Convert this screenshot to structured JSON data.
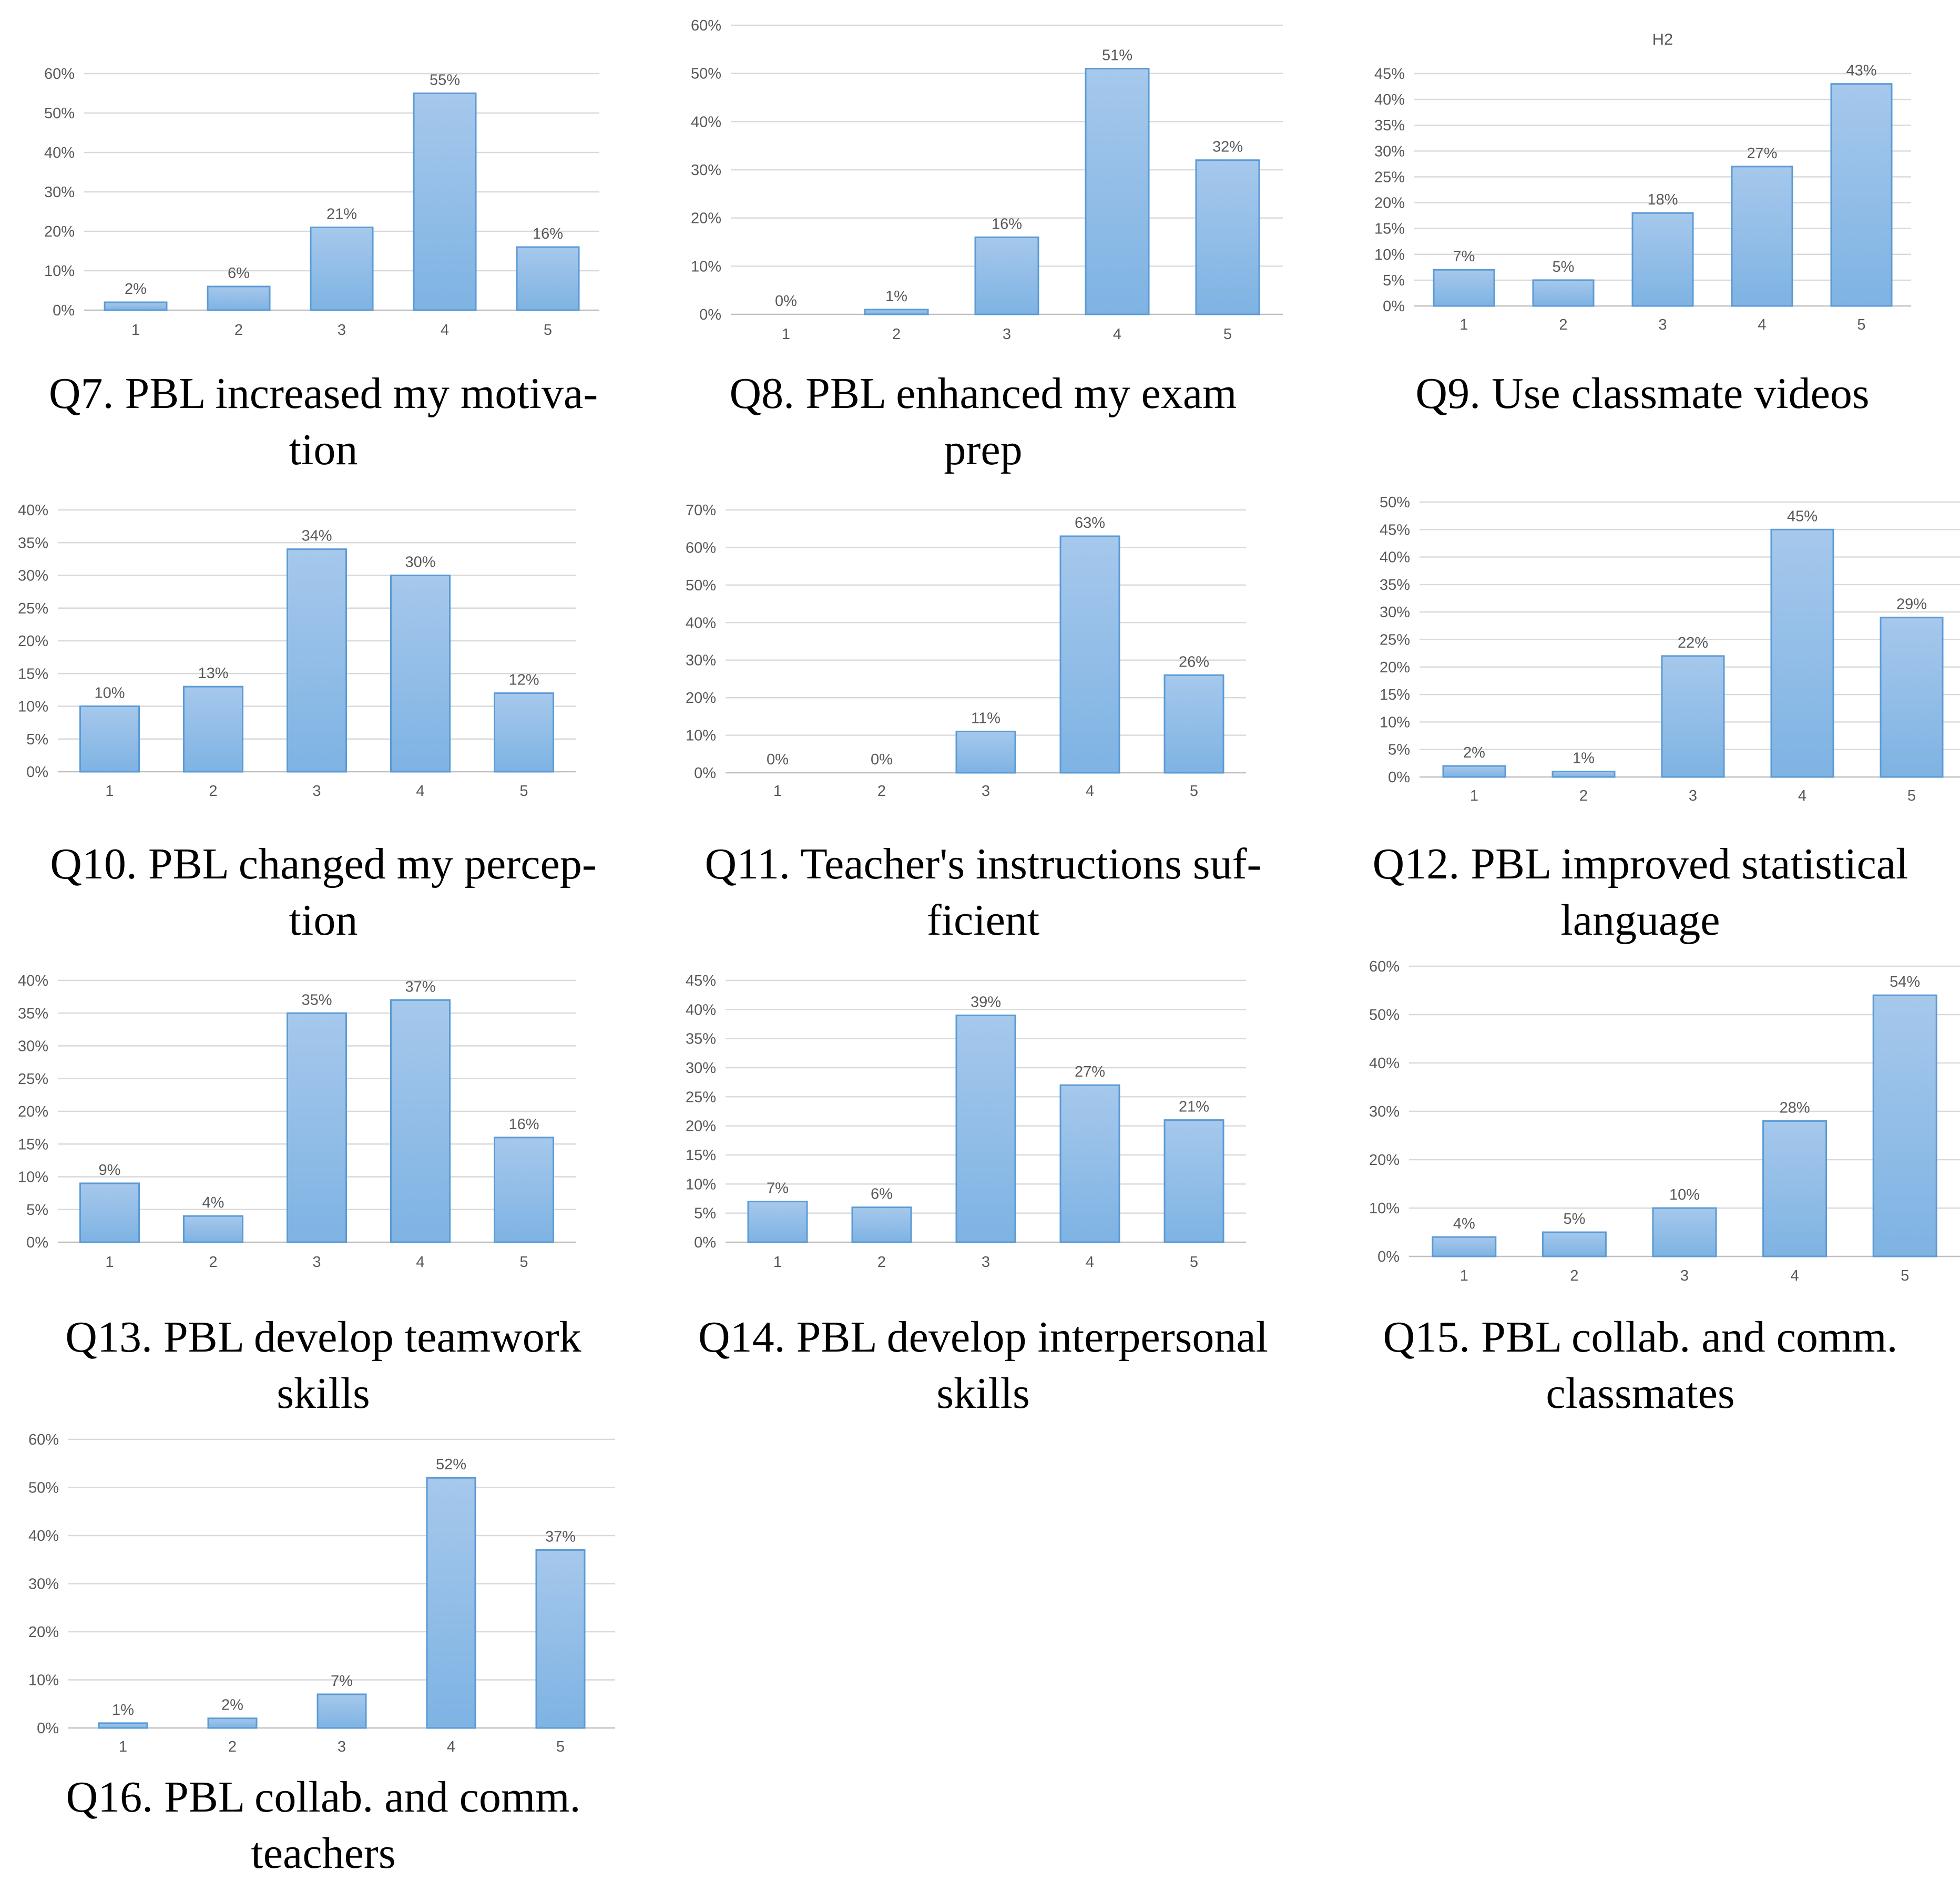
{
  "charts": [
    {
      "id": "q7",
      "caption_lines": [
        "Q7. PBL increased my motiva-",
        "tion"
      ],
      "chart_data": {
        "type": "bar",
        "title": "",
        "categories": [
          "1",
          "2",
          "3",
          "4",
          "5"
        ],
        "values": [
          2,
          6,
          21,
          55,
          16
        ],
        "labels": [
          "2%",
          "6%",
          "21%",
          "55%",
          "16%"
        ],
        "yticks": [
          "0%",
          "10%",
          "20%",
          "30%",
          "40%",
          "50%",
          "60%"
        ],
        "ylim": [
          0,
          60
        ]
      }
    },
    {
      "id": "q8",
      "caption_lines": [
        "Q8. PBL enhanced my exam",
        "prep"
      ],
      "chart_data": {
        "type": "bar",
        "title": "",
        "categories": [
          "1",
          "2",
          "3",
          "4",
          "5"
        ],
        "values": [
          0,
          1,
          16,
          51,
          32
        ],
        "labels": [
          "0%",
          "1%",
          "16%",
          "51%",
          "32%"
        ],
        "yticks": [
          "0%",
          "10%",
          "20%",
          "30%",
          "40%",
          "50%",
          "60%"
        ],
        "ylim": [
          0,
          60
        ]
      }
    },
    {
      "id": "q9",
      "caption_lines": [
        "Q9. Use classmate videos"
      ],
      "chart_data": {
        "type": "bar",
        "title": "H2",
        "categories": [
          "1",
          "2",
          "3",
          "4",
          "5"
        ],
        "values": [
          7,
          5,
          18,
          27,
          43
        ],
        "labels": [
          "7%",
          "5%",
          "18%",
          "27%",
          "43%"
        ],
        "yticks": [
          "0%",
          "5%",
          "10%",
          "15%",
          "20%",
          "25%",
          "30%",
          "35%",
          "40%",
          "45%"
        ],
        "ylim": [
          0,
          45
        ]
      }
    },
    {
      "id": "q10",
      "caption_lines": [
        "Q10. PBL changed my percep-",
        "tion"
      ],
      "chart_data": {
        "type": "bar",
        "title": "",
        "categories": [
          "1",
          "2",
          "3",
          "4",
          "5"
        ],
        "values": [
          10,
          13,
          34,
          30,
          12
        ],
        "labels": [
          "10%",
          "13%",
          "34%",
          "30%",
          "12%"
        ],
        "yticks": [
          "0%",
          "5%",
          "10%",
          "15%",
          "20%",
          "25%",
          "30%",
          "35%",
          "40%"
        ],
        "ylim": [
          0,
          40
        ]
      }
    },
    {
      "id": "q11",
      "caption_lines": [
        "Q11. Teacher's instructions suf-",
        "ficient"
      ],
      "chart_data": {
        "type": "bar",
        "title": "",
        "categories": [
          "1",
          "2",
          "3",
          "4",
          "5"
        ],
        "values": [
          0,
          0,
          11,
          63,
          26
        ],
        "labels": [
          "0%",
          "0%",
          "11%",
          "63%",
          "26%"
        ],
        "yticks": [
          "0%",
          "10%",
          "20%",
          "30%",
          "40%",
          "50%",
          "60%",
          "70%"
        ],
        "ylim": [
          0,
          70
        ]
      }
    },
    {
      "id": "q12",
      "caption_lines": [
        "Q12. PBL improved statistical",
        "language"
      ],
      "chart_data": {
        "type": "bar",
        "title": "",
        "categories": [
          "1",
          "2",
          "3",
          "4",
          "5"
        ],
        "values": [
          2,
          1,
          22,
          45,
          29
        ],
        "labels": [
          "2%",
          "1%",
          "22%",
          "45%",
          "29%"
        ],
        "yticks": [
          "0%",
          "5%",
          "10%",
          "15%",
          "20%",
          "25%",
          "30%",
          "35%",
          "40%",
          "45%",
          "50%"
        ],
        "ylim": [
          0,
          50
        ]
      }
    },
    {
      "id": "q13",
      "caption_lines": [
        "Q13. PBL develop teamwork",
        "skills"
      ],
      "chart_data": {
        "type": "bar",
        "title": "",
        "categories": [
          "1",
          "2",
          "3",
          "4",
          "5"
        ],
        "values": [
          9,
          4,
          35,
          37,
          16
        ],
        "labels": [
          "9%",
          "4%",
          "35%",
          "37%",
          "16%"
        ],
        "yticks": [
          "0%",
          "5%",
          "10%",
          "15%",
          "20%",
          "25%",
          "30%",
          "35%",
          "40%"
        ],
        "ylim": [
          0,
          40
        ]
      }
    },
    {
      "id": "q14",
      "caption_lines": [
        "Q14. PBL develop interpersonal",
        "skills"
      ],
      "chart_data": {
        "type": "bar",
        "title": "",
        "categories": [
          "1",
          "2",
          "3",
          "4",
          "5"
        ],
        "values": [
          7,
          6,
          39,
          27,
          21
        ],
        "labels": [
          "7%",
          "6%",
          "39%",
          "27%",
          "21%"
        ],
        "yticks": [
          "0%",
          "5%",
          "10%",
          "15%",
          "20%",
          "25%",
          "30%",
          "35%",
          "40%",
          "45%"
        ],
        "ylim": [
          0,
          45
        ]
      }
    },
    {
      "id": "q15",
      "caption_lines": [
        "Q15. PBL collab. and comm.",
        "classmates"
      ],
      "chart_data": {
        "type": "bar",
        "title": "",
        "categories": [
          "1",
          "2",
          "3",
          "4",
          "5"
        ],
        "values": [
          4,
          5,
          10,
          28,
          54
        ],
        "labels": [
          "4%",
          "5%",
          "10%",
          "28%",
          "54%"
        ],
        "yticks": [
          "0%",
          "10%",
          "20%",
          "30%",
          "40%",
          "50%",
          "60%"
        ],
        "ylim": [
          0,
          60
        ]
      }
    },
    {
      "id": "q16",
      "caption_lines": [
        "Q16. PBL collab. and comm.",
        "teachers"
      ],
      "chart_data": {
        "type": "bar",
        "title": "",
        "categories": [
          "1",
          "2",
          "3",
          "4",
          "5"
        ],
        "values": [
          1,
          2,
          7,
          52,
          37
        ],
        "labels": [
          "1%",
          "2%",
          "7%",
          "52%",
          "37%"
        ],
        "yticks": [
          "0%",
          "10%",
          "20%",
          "30%",
          "40%",
          "50%",
          "60%"
        ],
        "ylim": [
          0,
          60
        ]
      }
    }
  ],
  "colors": {
    "bar_top": "#a6c8ec",
    "bar_bottom": "#7eb3e3",
    "bar_border": "#5b9bd5"
  }
}
